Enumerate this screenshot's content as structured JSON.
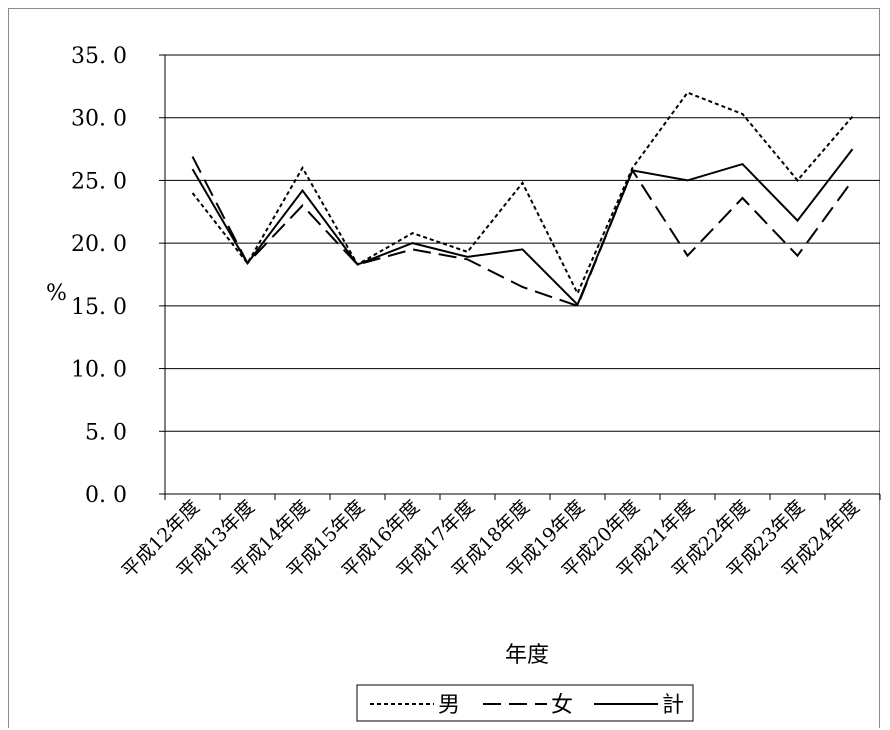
{
  "chart_data": {
    "type": "line",
    "title": "",
    "xlabel": "年度",
    "ylabel": "%",
    "ylim": [
      0,
      35
    ],
    "yticks": [
      "0. 0",
      "5. 0",
      "10. 0",
      "15. 0",
      "20. 0",
      "25. 0",
      "30. 0",
      "35. 0"
    ],
    "grid": true,
    "legend_position": "bottom",
    "categories": [
      "平成12年度",
      "平成13年度",
      "平成14年度",
      "平成15年度",
      "平成16年度",
      "平成17年度",
      "平成18年度",
      "平成19年度",
      "平成20年度",
      "平成21年度",
      "平成22年度",
      "平成23年度",
      "平成24年度"
    ],
    "series": [
      {
        "name": "男",
        "style": "dotted",
        "color": "#000000",
        "values": [
          24.0,
          18.4,
          26.0,
          18.3,
          20.8,
          19.3,
          24.8,
          16.0,
          26.0,
          32.0,
          30.3,
          25.0,
          30.1
        ]
      },
      {
        "name": "女",
        "style": "dashed",
        "color": "#000000",
        "values": [
          26.9,
          18.4,
          23.0,
          18.3,
          19.5,
          18.7,
          16.5,
          15.0,
          25.8,
          19.0,
          23.6,
          19.0,
          25.0
        ]
      },
      {
        "name": "計",
        "style": "solid",
        "color": "#000000",
        "values": [
          25.9,
          18.4,
          24.2,
          18.3,
          20.0,
          18.9,
          19.5,
          15.1,
          25.8,
          25.0,
          26.3,
          21.8,
          27.5
        ]
      }
    ]
  }
}
